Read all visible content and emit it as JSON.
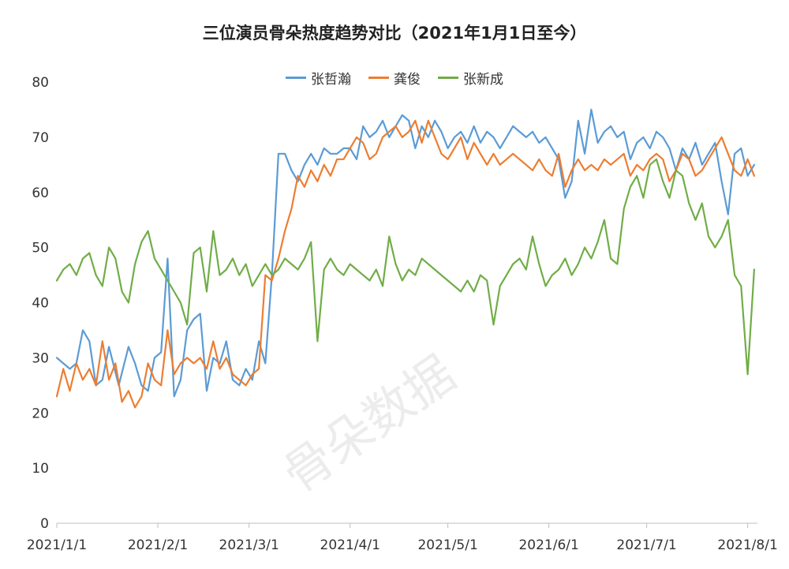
{
  "chart_data": {
    "type": "line",
    "title": "三位演员骨朵热度趋势对比（2021年1月1日至今）",
    "watermark": "骨朵数据",
    "ylim": [
      0,
      80
    ],
    "yticks": [
      0,
      10,
      20,
      30,
      40,
      50,
      60,
      70,
      80
    ],
    "xticks": [
      "2021/1/1",
      "2021/2/1",
      "2021/3/1",
      "2021/4/1",
      "2021/5/1",
      "2021/6/1",
      "2021/7/1",
      "2021/8/1"
    ],
    "xtick_day_index": [
      0,
      31,
      59,
      90,
      120,
      151,
      181,
      212
    ],
    "x_days": 215,
    "grid": false,
    "legend_position": "top",
    "series": [
      {
        "name": "张哲瀚",
        "color": "#5b9bd5",
        "points": [
          [
            0,
            30
          ],
          [
            4,
            28
          ],
          [
            6,
            29
          ],
          [
            8,
            35
          ],
          [
            10,
            33
          ],
          [
            12,
            25
          ],
          [
            14,
            26
          ],
          [
            16,
            32
          ],
          [
            19,
            25
          ],
          [
            22,
            32
          ],
          [
            24,
            29
          ],
          [
            26,
            25
          ],
          [
            28,
            24
          ],
          [
            30,
            30
          ],
          [
            32,
            31
          ],
          [
            34,
            48
          ],
          [
            36,
            23
          ],
          [
            38,
            26
          ],
          [
            40,
            35
          ],
          [
            42,
            37
          ],
          [
            44,
            38
          ],
          [
            46,
            24
          ],
          [
            48,
            30
          ],
          [
            50,
            29
          ],
          [
            52,
            33
          ],
          [
            54,
            26
          ],
          [
            56,
            25
          ],
          [
            58,
            28
          ],
          [
            60,
            26
          ],
          [
            62,
            33
          ],
          [
            64,
            29
          ],
          [
            66,
            45
          ],
          [
            68,
            67
          ],
          [
            70,
            67
          ],
          [
            72,
            64
          ],
          [
            74,
            62
          ],
          [
            76,
            65
          ],
          [
            78,
            67
          ],
          [
            80,
            65
          ],
          [
            82,
            68
          ],
          [
            84,
            67
          ],
          [
            86,
            67
          ],
          [
            88,
            68
          ],
          [
            90,
            68
          ],
          [
            92,
            66
          ],
          [
            94,
            72
          ],
          [
            96,
            70
          ],
          [
            98,
            71
          ],
          [
            100,
            73
          ],
          [
            102,
            70
          ],
          [
            104,
            72
          ],
          [
            106,
            74
          ],
          [
            108,
            73
          ],
          [
            110,
            68
          ],
          [
            112,
            72
          ],
          [
            114,
            70
          ],
          [
            116,
            73
          ],
          [
            118,
            71
          ],
          [
            120,
            68
          ],
          [
            122,
            70
          ],
          [
            124,
            71
          ],
          [
            126,
            69
          ],
          [
            128,
            72
          ],
          [
            130,
            69
          ],
          [
            132,
            71
          ],
          [
            134,
            70
          ],
          [
            136,
            68
          ],
          [
            138,
            70
          ],
          [
            140,
            72
          ],
          [
            142,
            71
          ],
          [
            144,
            70
          ],
          [
            146,
            71
          ],
          [
            148,
            69
          ],
          [
            150,
            70
          ],
          [
            152,
            68
          ],
          [
            154,
            66
          ],
          [
            156,
            59
          ],
          [
            158,
            62
          ],
          [
            160,
            73
          ],
          [
            162,
            67
          ],
          [
            164,
            75
          ],
          [
            166,
            69
          ],
          [
            168,
            71
          ],
          [
            170,
            72
          ],
          [
            172,
            70
          ],
          [
            174,
            71
          ],
          [
            176,
            66
          ],
          [
            178,
            69
          ],
          [
            180,
            70
          ],
          [
            182,
            68
          ],
          [
            184,
            71
          ],
          [
            186,
            70
          ],
          [
            188,
            68
          ],
          [
            190,
            64
          ],
          [
            192,
            68
          ],
          [
            194,
            66
          ],
          [
            196,
            69
          ],
          [
            198,
            65
          ],
          [
            200,
            67
          ],
          [
            202,
            69
          ],
          [
            204,
            62
          ],
          [
            206,
            56
          ],
          [
            208,
            67
          ],
          [
            210,
            68
          ],
          [
            212,
            63
          ],
          [
            214,
            65
          ]
        ]
      },
      {
        "name": "龚俊",
        "color": "#ed7d31",
        "points": [
          [
            0,
            23
          ],
          [
            2,
            28
          ],
          [
            4,
            24
          ],
          [
            6,
            29
          ],
          [
            8,
            26
          ],
          [
            10,
            28
          ],
          [
            12,
            25
          ],
          [
            14,
            33
          ],
          [
            16,
            26
          ],
          [
            18,
            29
          ],
          [
            20,
            22
          ],
          [
            22,
            24
          ],
          [
            24,
            21
          ],
          [
            26,
            23
          ],
          [
            28,
            29
          ],
          [
            30,
            26
          ],
          [
            32,
            25
          ],
          [
            34,
            35
          ],
          [
            36,
            27
          ],
          [
            38,
            29
          ],
          [
            40,
            30
          ],
          [
            42,
            29
          ],
          [
            44,
            30
          ],
          [
            46,
            28
          ],
          [
            48,
            33
          ],
          [
            50,
            28
          ],
          [
            52,
            30
          ],
          [
            54,
            27
          ],
          [
            56,
            26
          ],
          [
            58,
            25
          ],
          [
            60,
            27
          ],
          [
            62,
            28
          ],
          [
            64,
            45
          ],
          [
            66,
            44
          ],
          [
            68,
            48
          ],
          [
            70,
            53
          ],
          [
            72,
            57
          ],
          [
            74,
            63
          ],
          [
            76,
            61
          ],
          [
            78,
            64
          ],
          [
            80,
            62
          ],
          [
            82,
            65
          ],
          [
            84,
            63
          ],
          [
            86,
            66
          ],
          [
            88,
            66
          ],
          [
            90,
            68
          ],
          [
            92,
            70
          ],
          [
            94,
            69
          ],
          [
            96,
            66
          ],
          [
            98,
            67
          ],
          [
            100,
            70
          ],
          [
            102,
            71
          ],
          [
            104,
            72
          ],
          [
            106,
            70
          ],
          [
            108,
            71
          ],
          [
            110,
            73
          ],
          [
            112,
            69
          ],
          [
            114,
            73
          ],
          [
            116,
            70
          ],
          [
            118,
            67
          ],
          [
            120,
            66
          ],
          [
            122,
            68
          ],
          [
            124,
            70
          ],
          [
            126,
            66
          ],
          [
            128,
            69
          ],
          [
            130,
            67
          ],
          [
            132,
            65
          ],
          [
            134,
            67
          ],
          [
            136,
            65
          ],
          [
            138,
            66
          ],
          [
            140,
            67
          ],
          [
            142,
            66
          ],
          [
            144,
            65
          ],
          [
            146,
            64
          ],
          [
            148,
            66
          ],
          [
            150,
            64
          ],
          [
            152,
            63
          ],
          [
            154,
            67
          ],
          [
            156,
            61
          ],
          [
            158,
            64
          ],
          [
            160,
            66
          ],
          [
            162,
            64
          ],
          [
            164,
            65
          ],
          [
            166,
            64
          ],
          [
            168,
            66
          ],
          [
            170,
            65
          ],
          [
            172,
            66
          ],
          [
            174,
            67
          ],
          [
            176,
            63
          ],
          [
            178,
            65
          ],
          [
            180,
            64
          ],
          [
            182,
            66
          ],
          [
            184,
            67
          ],
          [
            186,
            66
          ],
          [
            188,
            62
          ],
          [
            190,
            64
          ],
          [
            192,
            67
          ],
          [
            194,
            66
          ],
          [
            196,
            63
          ],
          [
            198,
            64
          ],
          [
            200,
            66
          ],
          [
            202,
            68
          ],
          [
            204,
            70
          ],
          [
            206,
            67
          ],
          [
            208,
            64
          ],
          [
            210,
            63
          ],
          [
            212,
            66
          ],
          [
            214,
            63
          ]
        ]
      },
      {
        "name": "张新成",
        "color": "#70ad47",
        "points": [
          [
            0,
            44
          ],
          [
            2,
            46
          ],
          [
            4,
            47
          ],
          [
            6,
            45
          ],
          [
            8,
            48
          ],
          [
            10,
            49
          ],
          [
            12,
            45
          ],
          [
            14,
            43
          ],
          [
            16,
            50
          ],
          [
            18,
            48
          ],
          [
            20,
            42
          ],
          [
            22,
            40
          ],
          [
            24,
            47
          ],
          [
            26,
            51
          ],
          [
            28,
            53
          ],
          [
            30,
            48
          ],
          [
            32,
            46
          ],
          [
            34,
            44
          ],
          [
            36,
            42
          ],
          [
            38,
            40
          ],
          [
            40,
            36
          ],
          [
            42,
            49
          ],
          [
            44,
            50
          ],
          [
            46,
            42
          ],
          [
            48,
            53
          ],
          [
            50,
            45
          ],
          [
            52,
            46
          ],
          [
            54,
            48
          ],
          [
            56,
            45
          ],
          [
            58,
            47
          ],
          [
            60,
            43
          ],
          [
            62,
            45
          ],
          [
            64,
            47
          ],
          [
            66,
            45
          ],
          [
            68,
            46
          ],
          [
            70,
            48
          ],
          [
            72,
            47
          ],
          [
            74,
            46
          ],
          [
            76,
            48
          ],
          [
            78,
            51
          ],
          [
            80,
            33
          ],
          [
            82,
            46
          ],
          [
            84,
            48
          ],
          [
            86,
            46
          ],
          [
            88,
            45
          ],
          [
            90,
            47
          ],
          [
            92,
            46
          ],
          [
            94,
            45
          ],
          [
            96,
            44
          ],
          [
            98,
            46
          ],
          [
            100,
            43
          ],
          [
            102,
            52
          ],
          [
            104,
            47
          ],
          [
            106,
            44
          ],
          [
            108,
            46
          ],
          [
            110,
            45
          ],
          [
            112,
            48
          ],
          [
            114,
            47
          ],
          [
            116,
            46
          ],
          [
            118,
            45
          ],
          [
            120,
            44
          ],
          [
            122,
            43
          ],
          [
            124,
            42
          ],
          [
            126,
            44
          ],
          [
            128,
            42
          ],
          [
            130,
            45
          ],
          [
            132,
            44
          ],
          [
            134,
            36
          ],
          [
            136,
            43
          ],
          [
            138,
            45
          ],
          [
            140,
            47
          ],
          [
            142,
            48
          ],
          [
            144,
            46
          ],
          [
            146,
            52
          ],
          [
            148,
            47
          ],
          [
            150,
            43
          ],
          [
            152,
            45
          ],
          [
            154,
            46
          ],
          [
            156,
            48
          ],
          [
            158,
            45
          ],
          [
            160,
            47
          ],
          [
            162,
            50
          ],
          [
            164,
            48
          ],
          [
            166,
            51
          ],
          [
            168,
            55
          ],
          [
            170,
            48
          ],
          [
            172,
            47
          ],
          [
            174,
            57
          ],
          [
            176,
            61
          ],
          [
            178,
            63
          ],
          [
            180,
            59
          ],
          [
            182,
            65
          ],
          [
            184,
            66
          ],
          [
            186,
            62
          ],
          [
            188,
            59
          ],
          [
            190,
            64
          ],
          [
            192,
            63
          ],
          [
            194,
            58
          ],
          [
            196,
            55
          ],
          [
            198,
            58
          ],
          [
            200,
            52
          ],
          [
            202,
            50
          ],
          [
            204,
            52
          ],
          [
            206,
            55
          ],
          [
            208,
            45
          ],
          [
            210,
            43
          ],
          [
            212,
            27
          ],
          [
            214,
            46
          ]
        ]
      }
    ]
  }
}
